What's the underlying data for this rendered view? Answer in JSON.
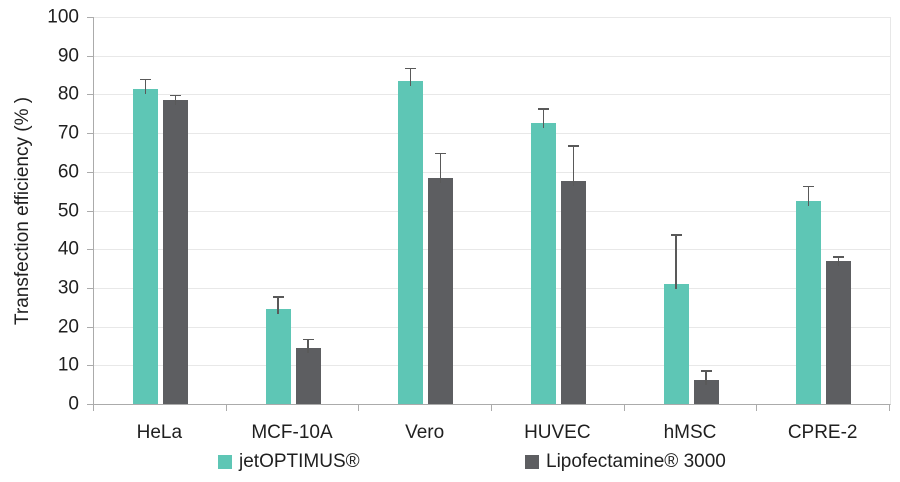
{
  "chart_data": {
    "type": "bar",
    "title": "",
    "xlabel": "",
    "ylabel": "Transfection efficiency (% )",
    "ylim": [
      0,
      100
    ],
    "yticks": [
      0,
      10,
      20,
      30,
      40,
      50,
      60,
      70,
      80,
      90,
      100
    ],
    "grid": true,
    "legend_position": "bottom",
    "categories": [
      "HeLa",
      "MCF-10A",
      "Vero",
      "HUVEC",
      "hMSC",
      "CPRE-2"
    ],
    "series": [
      {
        "name": "jetOPTIMUS®",
        "color": "#5ec6b5",
        "values": [
          81.5,
          24.5,
          83.5,
          72.5,
          31,
          52.5
        ],
        "errors_plus": [
          2.2,
          3,
          3,
          3.5,
          12.5,
          3.5
        ]
      },
      {
        "name": "Lipofectamine® 3000",
        "color": "#5d5e61",
        "values": [
          78.5,
          14.5,
          58.5,
          57.5,
          6.3,
          37
        ],
        "errors_plus": [
          1,
          2,
          6,
          9,
          2,
          0.8
        ]
      }
    ],
    "error_bar_color": "#595959"
  }
}
